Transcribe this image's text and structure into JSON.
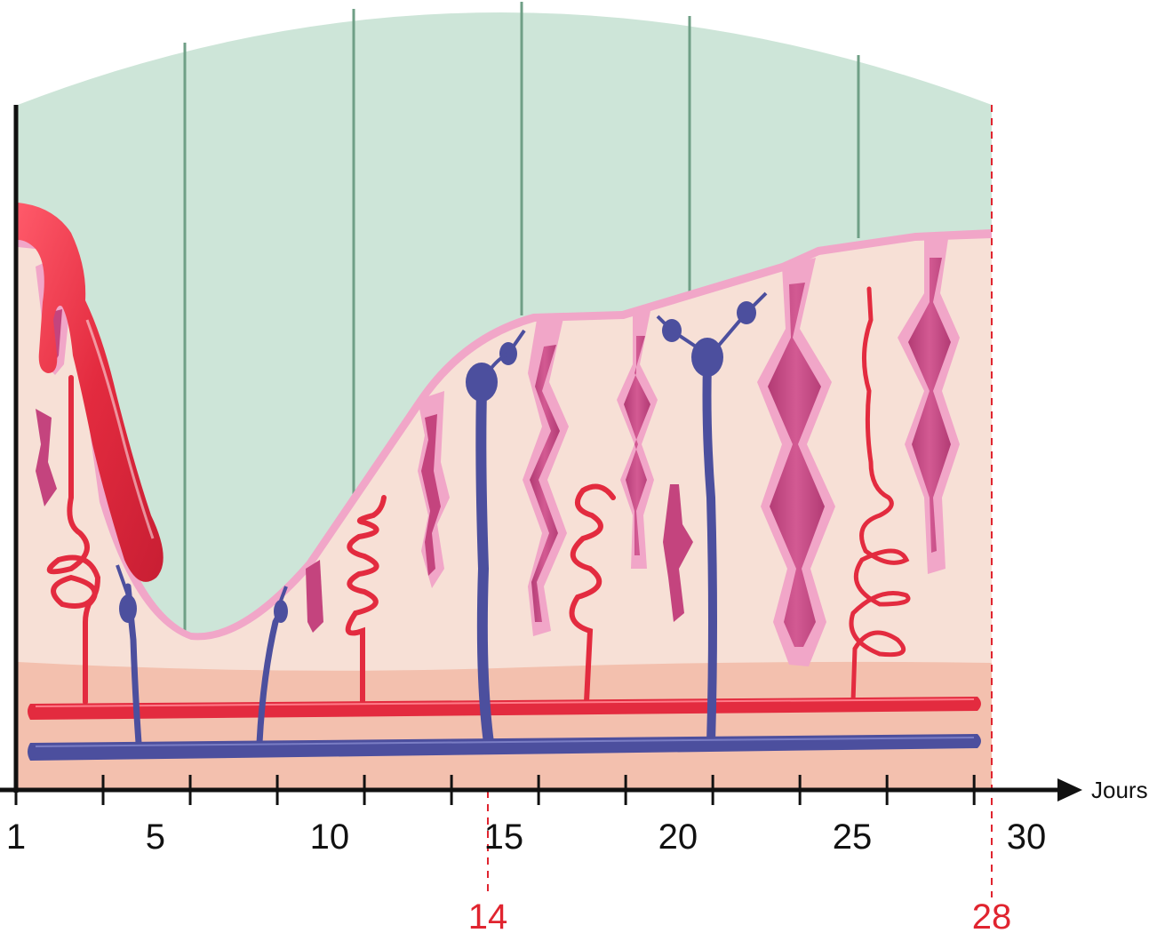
{
  "axis": {
    "unit_label": "Jours",
    "tick_labels": [
      {
        "value": 1,
        "text": "1"
      },
      {
        "value": 5,
        "text": "5"
      },
      {
        "value": 10,
        "text": "10"
      },
      {
        "value": 15,
        "text": "15"
      },
      {
        "value": 20,
        "text": "20"
      },
      {
        "value": 25,
        "text": "25"
      },
      {
        "value": 30,
        "text": "30"
      }
    ],
    "range": [
      1,
      30
    ]
  },
  "markers": [
    {
      "day": 14,
      "text": "14"
    },
    {
      "day": 28,
      "text": "28"
    }
  ],
  "colors": {
    "background_upper": "#cde5d8",
    "divider": "#6f9f86",
    "endometrium": "#f7e0d6",
    "basal_layer": "#f3c0ae",
    "gland_outer": "#f1a6c8",
    "gland_inner": "#c4447e",
    "blood_red": "#e32b3f",
    "vein_blue": "#4c4f9e",
    "marker_red": "#e0242f",
    "axis": "#111111"
  }
}
